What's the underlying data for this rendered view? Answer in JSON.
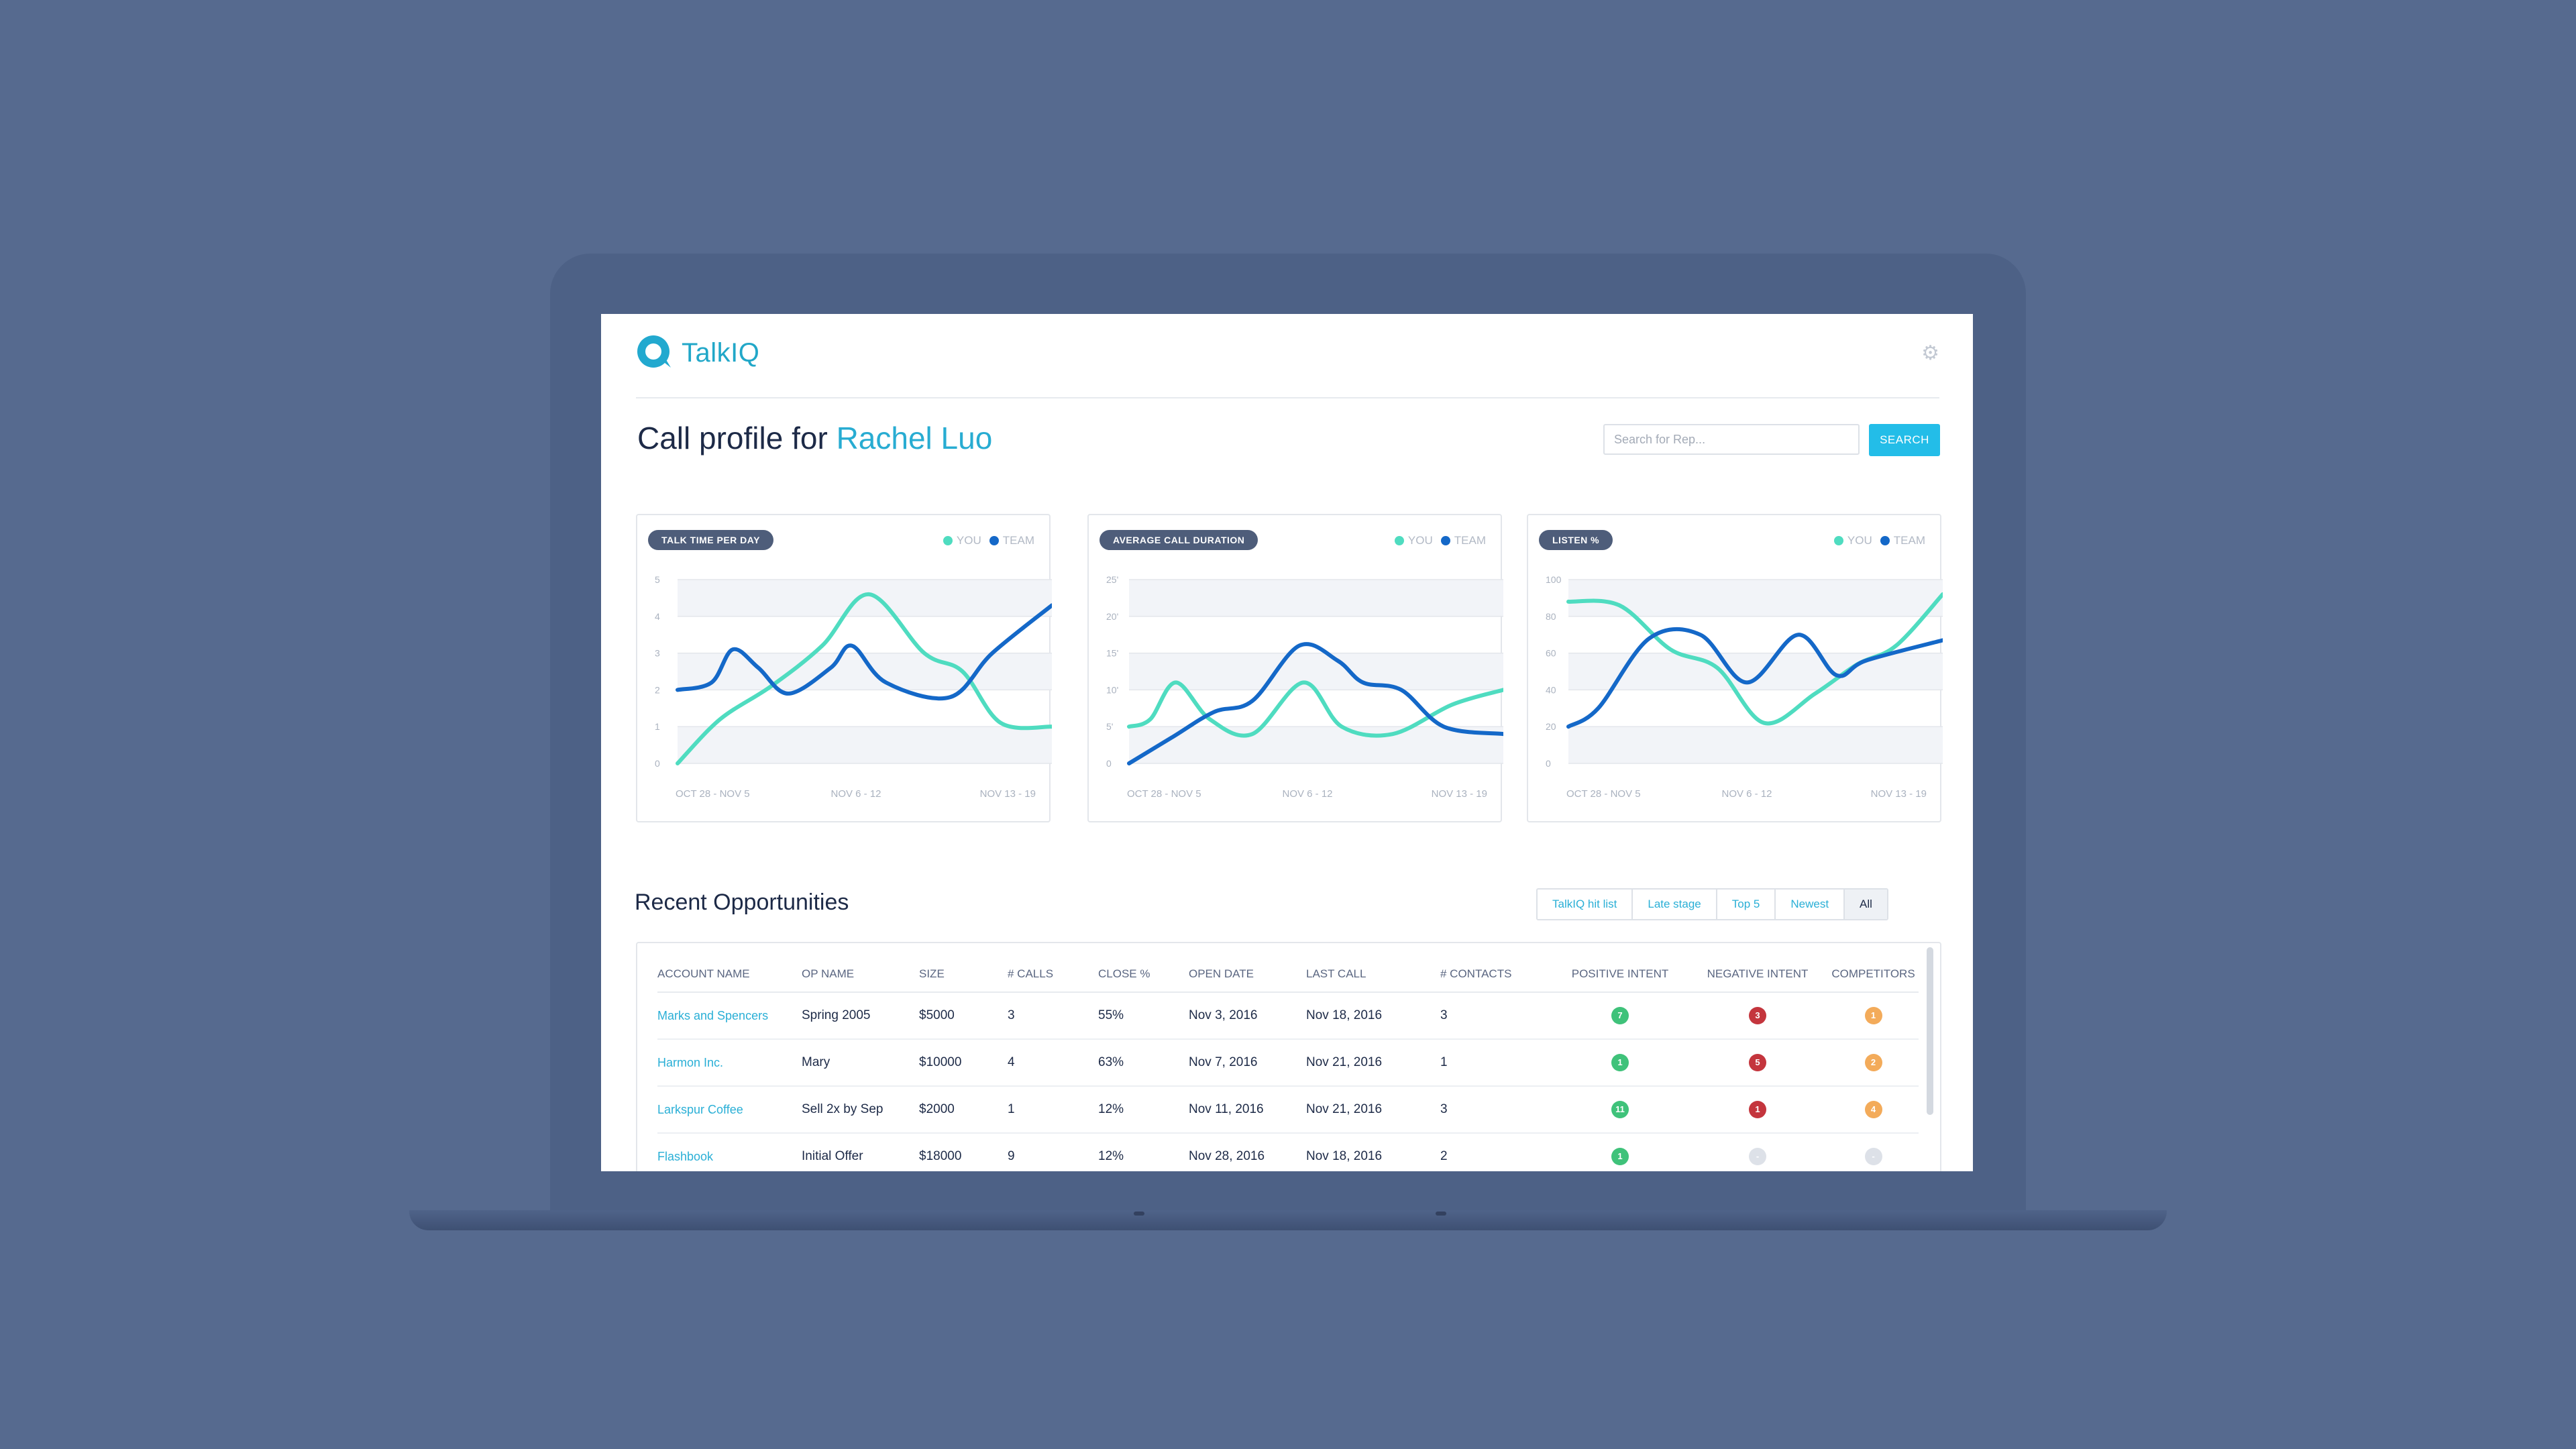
{
  "app": {
    "name": "TalkIQ"
  },
  "header": {
    "title_prefix": "Call profile for",
    "rep_name": "Rachel Luo"
  },
  "search": {
    "placeholder": "Search for Rep...",
    "button_label": "SEARCH"
  },
  "colors": {
    "you": "#4fdcc0",
    "team": "#1468c8",
    "positive": "#3fc27a",
    "negative": "#c4353d",
    "competitor": "#f3ab5a",
    "none": "#dde1e8"
  },
  "legend": {
    "you": "YOU",
    "team": "TEAM"
  },
  "chart_data": [
    {
      "type": "line",
      "title": "TALK TIME PER DAY",
      "x_labels": [
        "OCT 28 - NOV 5",
        "NOV 6 - 12",
        "NOV 13 - 19"
      ],
      "y_ticks": [
        "0",
        "1",
        "2",
        "3",
        "4",
        "5"
      ],
      "ylim": [
        0,
        5
      ],
      "series": [
        {
          "name": "YOU",
          "points": [
            [
              0,
              0
            ],
            [
              0.5,
              1.2
            ],
            [
              1.1,
              2.1
            ],
            [
              1.7,
              3.2
            ],
            [
              2.25,
              4.6
            ],
            [
              2.9,
              3.0
            ],
            [
              3.35,
              2.5
            ],
            [
              3.8,
              1.1
            ],
            [
              4.4,
              1.0
            ]
          ]
        },
        {
          "name": "TEAM",
          "points": [
            [
              0,
              2.0
            ],
            [
              0.4,
              2.2
            ],
            [
              0.65,
              3.1
            ],
            [
              0.95,
              2.6
            ],
            [
              1.3,
              1.9
            ],
            [
              1.8,
              2.6
            ],
            [
              2.05,
              3.2
            ],
            [
              2.45,
              2.2
            ],
            [
              3.2,
              1.8
            ],
            [
              3.7,
              3.0
            ],
            [
              4.4,
              4.3
            ]
          ]
        }
      ]
    },
    {
      "type": "line",
      "title": "AVERAGE CALL DURATION",
      "x_labels": [
        "OCT 28 - NOV 5",
        "NOV 6 - 12",
        "NOV 13 - 19"
      ],
      "y_ticks": [
        "0",
        "5'",
        "10'",
        "15'",
        "20'",
        "25'"
      ],
      "ylim": [
        0,
        25
      ],
      "series": [
        {
          "name": "YOU",
          "points": [
            [
              0,
              5
            ],
            [
              0.25,
              6
            ],
            [
              0.55,
              11
            ],
            [
              0.95,
              6
            ],
            [
              1.45,
              4
            ],
            [
              2.05,
              11
            ],
            [
              2.5,
              5
            ],
            [
              3.1,
              4
            ],
            [
              3.8,
              8
            ],
            [
              4.4,
              10
            ]
          ]
        },
        {
          "name": "TEAM",
          "points": [
            [
              0,
              0
            ],
            [
              0.5,
              3.5
            ],
            [
              1.0,
              7
            ],
            [
              1.45,
              8.5
            ],
            [
              2.0,
              16
            ],
            [
              2.45,
              14
            ],
            [
              2.75,
              11
            ],
            [
              3.2,
              10
            ],
            [
              3.7,
              5
            ],
            [
              4.4,
              4
            ]
          ]
        }
      ]
    },
    {
      "type": "line",
      "title": "LISTEN %",
      "x_labels": [
        "OCT 28 - NOV 5",
        "NOV 6 - 12",
        "NOV 13 - 19"
      ],
      "y_ticks": [
        "0",
        "20",
        "40",
        "60",
        "80",
        "100"
      ],
      "ylim": [
        0,
        100
      ],
      "series": [
        {
          "name": "YOU",
          "points": [
            [
              0,
              88
            ],
            [
              0.6,
              86
            ],
            [
              1.2,
              62
            ],
            [
              1.75,
              52
            ],
            [
              2.3,
              22
            ],
            [
              2.9,
              38
            ],
            [
              3.4,
              54
            ],
            [
              3.85,
              64
            ],
            [
              4.4,
              92
            ]
          ]
        },
        {
          "name": "TEAM",
          "points": [
            [
              0,
              20
            ],
            [
              0.35,
              30
            ],
            [
              0.95,
              68
            ],
            [
              1.55,
              70
            ],
            [
              2.1,
              44
            ],
            [
              2.7,
              70
            ],
            [
              3.15,
              48
            ],
            [
              3.5,
              56
            ],
            [
              4.4,
              67
            ]
          ]
        }
      ]
    }
  ],
  "opportunities": {
    "title": "Recent Opportunities",
    "filters": [
      "TalkIQ hit list",
      "Late stage",
      "Top 5",
      "Newest",
      "All"
    ],
    "active_filter": "All",
    "columns": [
      "ACCOUNT NAME",
      "OP NAME",
      "SIZE",
      "# CALLS",
      "CLOSE %",
      "OPEN DATE",
      "LAST CALL",
      "# CONTACTS",
      "POSITIVE INTENT",
      "NEGATIVE INTENT",
      "COMPETITORS"
    ],
    "rows": [
      {
        "account": "Marks and Spencers",
        "op": "Spring 2005",
        "size": "$5000",
        "calls": "3",
        "close": "55%",
        "open": "Nov 3, 2016",
        "last": "Nov 18, 2016",
        "contacts": "3",
        "positive": "7",
        "negative": "3",
        "competitors": "1"
      },
      {
        "account": "Harmon Inc.",
        "op": "Mary",
        "size": "$10000",
        "calls": "4",
        "close": "63%",
        "open": "Nov 7, 2016",
        "last": "Nov 21, 2016",
        "contacts": "1",
        "positive": "1",
        "negative": "5",
        "competitors": "2"
      },
      {
        "account": "Larkspur Coffee",
        "op": "Sell 2x by Sep",
        "size": "$2000",
        "calls": "1",
        "close": "12%",
        "open": "Nov 11, 2016",
        "last": "Nov 21, 2016",
        "contacts": "3",
        "positive": "11",
        "negative": "1",
        "competitors": "4"
      },
      {
        "account": "Flashbook",
        "op": "Initial Offer",
        "size": "$18000",
        "calls": "9",
        "close": "12%",
        "open": "Nov 28, 2016",
        "last": "Nov 18, 2016",
        "contacts": "2",
        "positive": "1",
        "negative": "-",
        "competitors": "-"
      }
    ]
  }
}
